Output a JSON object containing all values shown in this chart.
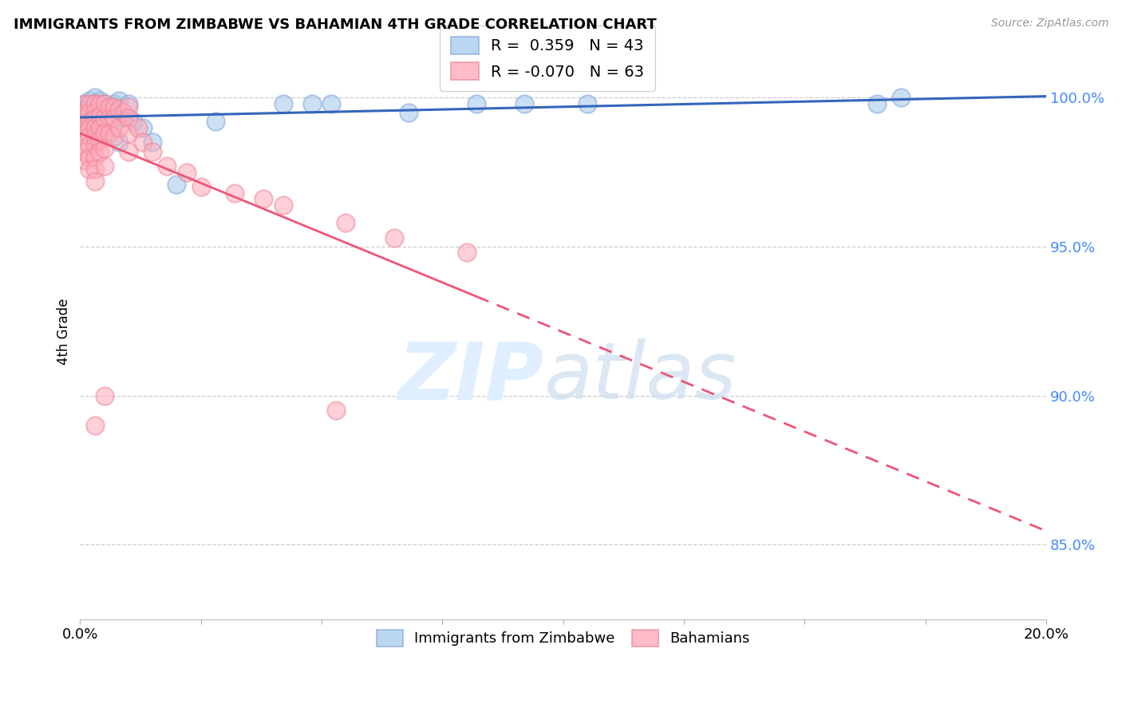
{
  "title": "IMMIGRANTS FROM ZIMBABWE VS BAHAMIAN 4TH GRADE CORRELATION CHART",
  "source": "Source: ZipAtlas.com",
  "ylabel": "4th Grade",
  "y_ticks": [
    0.85,
    0.9,
    0.95,
    1.0
  ],
  "y_tick_labels": [
    "85.0%",
    "90.0%",
    "95.0%",
    "100.0%"
  ],
  "xlim": [
    0.0,
    0.2
  ],
  "ylim": [
    0.825,
    1.018
  ],
  "legend_r_blue": "R =  0.359",
  "legend_n_blue": "N = 43",
  "legend_r_pink": "R = -0.070",
  "legend_n_pink": "N = 63",
  "blue_color": "#88AADD",
  "pink_color": "#EE8899",
  "blue_fill_color": "#AACCEE",
  "pink_fill_color": "#FFAABB",
  "blue_line_color": "#3366BB",
  "pink_line_color": "#EE5577",
  "blue_scatter_x": [
    0.001,
    0.001,
    0.001,
    0.002,
    0.002,
    0.002,
    0.002,
    0.002,
    0.003,
    0.003,
    0.003,
    0.003,
    0.003,
    0.003,
    0.003,
    0.004,
    0.004,
    0.004,
    0.005,
    0.005,
    0.005,
    0.006,
    0.006,
    0.007,
    0.007,
    0.008,
    0.008,
    0.009,
    0.01,
    0.011,
    0.013,
    0.015,
    0.02,
    0.028,
    0.042,
    0.048,
    0.052,
    0.068,
    0.082,
    0.092,
    0.105,
    0.165,
    0.17
  ],
  "blue_scatter_y": [
    0.998,
    0.996,
    0.993,
    0.999,
    0.997,
    0.994,
    0.992,
    0.99,
    1.0,
    0.998,
    0.997,
    0.995,
    0.993,
    0.99,
    0.988,
    0.999,
    0.995,
    0.988,
    0.998,
    0.996,
    0.988,
    0.997,
    0.994,
    0.998,
    0.992,
    0.999,
    0.985,
    0.994,
    0.998,
    0.992,
    0.99,
    0.985,
    0.971,
    0.992,
    0.998,
    0.998,
    0.998,
    0.995,
    0.998,
    0.998,
    0.998,
    0.998,
    1.0
  ],
  "pink_scatter_x": [
    0.001,
    0.001,
    0.001,
    0.001,
    0.001,
    0.001,
    0.001,
    0.001,
    0.002,
    0.002,
    0.002,
    0.002,
    0.002,
    0.002,
    0.002,
    0.002,
    0.003,
    0.003,
    0.003,
    0.003,
    0.003,
    0.003,
    0.003,
    0.003,
    0.003,
    0.004,
    0.004,
    0.004,
    0.004,
    0.004,
    0.005,
    0.005,
    0.005,
    0.005,
    0.005,
    0.006,
    0.006,
    0.006,
    0.007,
    0.007,
    0.007,
    0.008,
    0.008,
    0.009,
    0.01,
    0.01,
    0.01,
    0.01,
    0.012,
    0.013,
    0.015,
    0.018,
    0.022,
    0.025,
    0.032,
    0.038,
    0.042,
    0.055,
    0.065,
    0.08,
    0.005,
    0.053,
    0.003
  ],
  "pink_scatter_y": [
    0.998,
    0.995,
    0.993,
    0.99,
    0.988,
    0.985,
    0.982,
    0.979,
    0.998,
    0.995,
    0.992,
    0.99,
    0.987,
    0.984,
    0.98,
    0.976,
    0.998,
    0.995,
    0.993,
    0.99,
    0.987,
    0.984,
    0.98,
    0.976,
    0.972,
    0.998,
    0.994,
    0.99,
    0.986,
    0.982,
    0.998,
    0.993,
    0.988,
    0.983,
    0.977,
    0.997,
    0.993,
    0.988,
    0.997,
    0.993,
    0.987,
    0.996,
    0.99,
    0.995,
    0.997,
    0.993,
    0.988,
    0.982,
    0.99,
    0.985,
    0.982,
    0.977,
    0.975,
    0.97,
    0.968,
    0.966,
    0.964,
    0.958,
    0.953,
    0.948,
    0.9,
    0.895,
    0.89
  ]
}
